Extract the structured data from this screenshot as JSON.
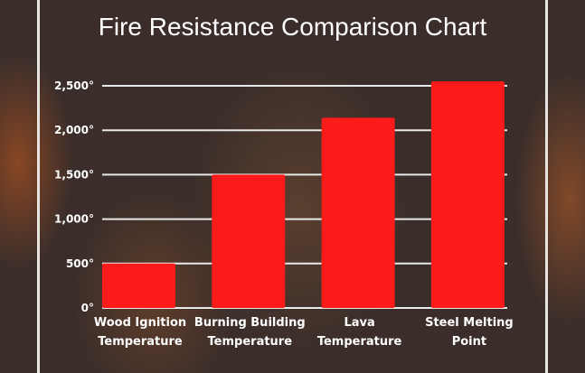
{
  "chart_data": {
    "type": "bar",
    "title": "Fire Resistance Comparison Chart",
    "categories": [
      [
        "Wood Ignition",
        "Temperature"
      ],
      [
        "Burning Building",
        "Temperature"
      ],
      [
        "Lava",
        "Temperature"
      ],
      [
        "Steel Melting",
        "Point"
      ]
    ],
    "values": [
      500,
      1500,
      2140,
      2550
    ],
    "yticks": [
      0,
      500,
      1000,
      1500,
      2000,
      2500
    ],
    "ytick_labels": [
      "0°",
      "500°",
      "1,000°",
      "1,500°",
      "2,000°",
      "2,500°"
    ],
    "ylim": [
      0,
      2500
    ],
    "xlabel": "",
    "ylabel": "",
    "grid": true,
    "bar_color": "#fc1b1b"
  }
}
